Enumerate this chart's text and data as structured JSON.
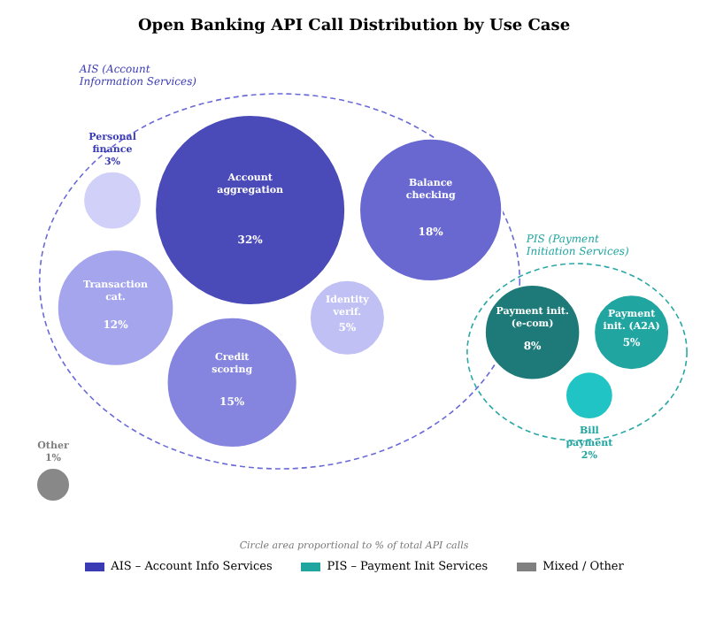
{
  "chart_data": {
    "type": "other",
    "title": "Open Banking API Call Distribution by Use Case",
    "legend": "bottom",
    "annotations": [
      "AIS (Account Information Services)",
      "PIS (Payment Initiation Services)",
      "Circle area proportional to % of total API calls"
    ],
    "categories": [
      "Account aggregation",
      "Balance checking",
      "Identity verif.",
      "Credit scoring",
      "Transaction cat.",
      "Personal finance",
      "Payment init. (e-com)",
      "Payment init. (A2A)",
      "Bill payment",
      "Other"
    ],
    "series": [
      {
        "name": "AIS – Account Info Services",
        "color": "#3a3ab5",
        "colors": [
          "#4a4ab8",
          "#6868d0",
          "#c0c0f5",
          "#8585e0",
          "#a5a5ee",
          "#d0d0f8",
          null,
          null,
          null,
          null
        ],
        "values": [
          32,
          18,
          5,
          15,
          12,
          3,
          null,
          null,
          null,
          null
        ],
        "value_labels": [
          "32%",
          "18%",
          "5%",
          "15%",
          "12%",
          "3%",
          null,
          null,
          null,
          null
        ]
      },
      {
        "name": "PIS – Payment Init Services",
        "color": "#20a5a0",
        "colors": [
          null,
          null,
          null,
          null,
          null,
          null,
          "#1e7a78",
          "#20a5a0",
          "#20c4c4",
          null
        ],
        "values": [
          null,
          null,
          null,
          null,
          null,
          null,
          8,
          5,
          2,
          null
        ],
        "value_labels": [
          null,
          null,
          null,
          null,
          null,
          null,
          "8%",
          "5%",
          "2%",
          null
        ]
      },
      {
        "name": "Mixed / Other",
        "color": "#808080",
        "colors": [
          null,
          null,
          null,
          null,
          null,
          null,
          null,
          null,
          null,
          "#888888"
        ],
        "values": [
          null,
          null,
          null,
          null,
          null,
          null,
          null,
          null,
          null,
          1
        ],
        "value_labels": [
          null,
          null,
          null,
          null,
          null,
          null,
          null,
          null,
          null,
          "1%"
        ]
      }
    ]
  }
}
